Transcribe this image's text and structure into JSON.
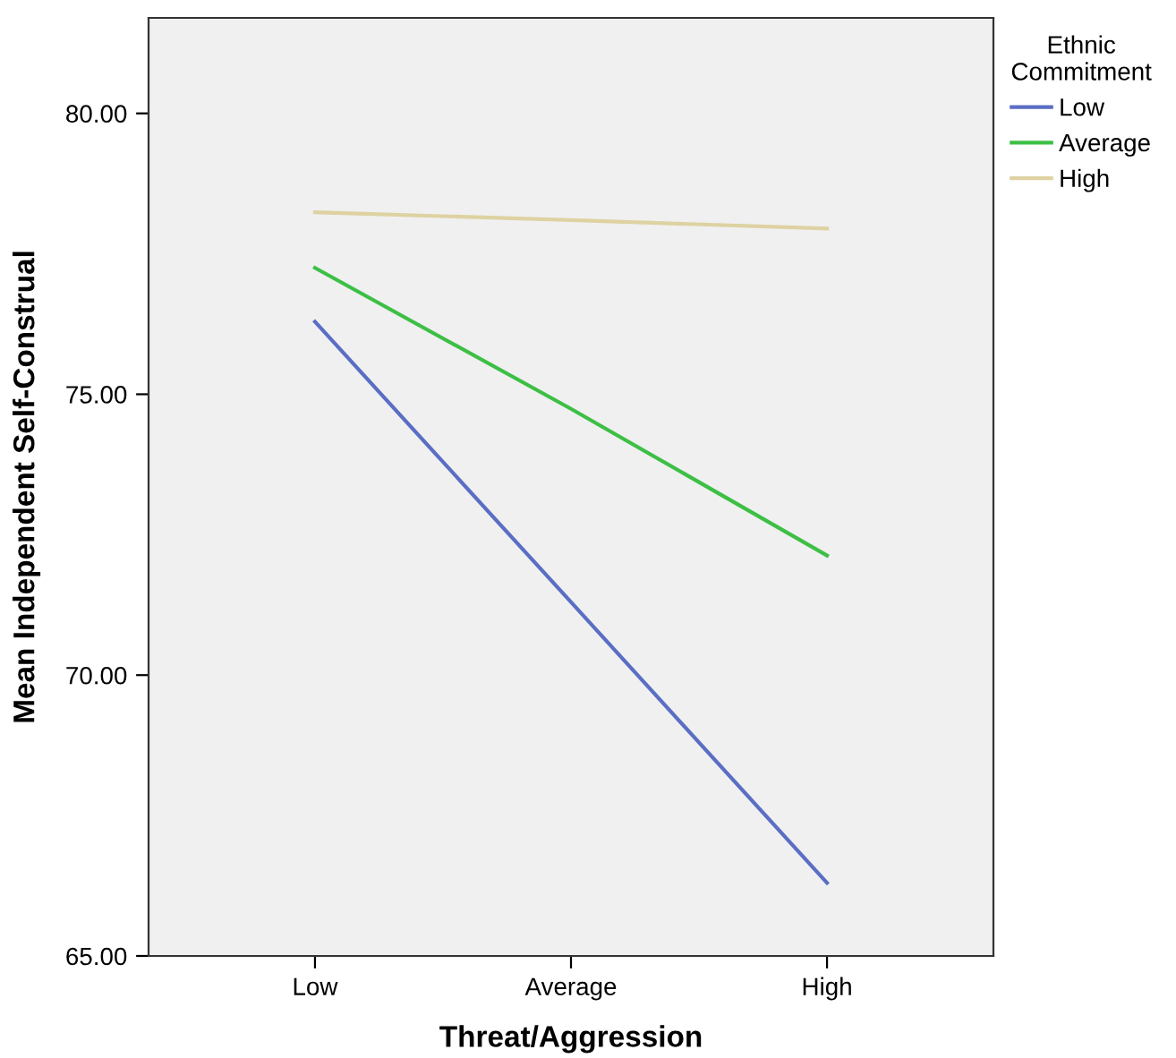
{
  "chart_data": {
    "type": "line",
    "xlabel": "Threat/Aggression",
    "ylabel": "Mean Independent Self-Construal",
    "legend_title": "Ethnic\nCommitment",
    "categories": [
      "Low",
      "Average",
      "High"
    ],
    "series": [
      {
        "name": "Low",
        "color": "#5a6ec4",
        "values": [
          76.29,
          71.3,
          66.3
        ]
      },
      {
        "name": "Average",
        "color": "#3dbf45",
        "values": [
          77.25,
          74.74,
          72.13
        ]
      },
      {
        "name": "High",
        "color": "#ded2a2",
        "values": [
          78.24,
          78.1,
          77.95
        ]
      }
    ],
    "ylim": [
      65,
      81.7
    ],
    "yticks": [
      {
        "value": 65,
        "label": "65.00"
      },
      {
        "value": 70,
        "label": "70.00"
      },
      {
        "value": 75,
        "label": "75.00"
      },
      {
        "value": 80,
        "label": "80.00"
      }
    ],
    "grid": false,
    "legend": "top right",
    "marker": "none",
    "line_style": "solid"
  }
}
